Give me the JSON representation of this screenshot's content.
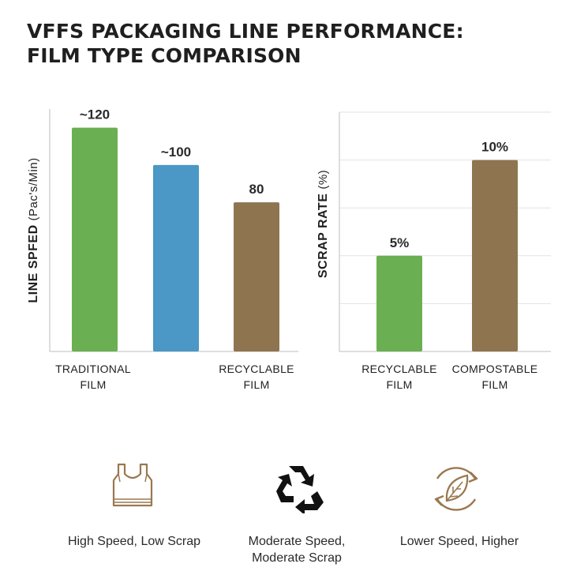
{
  "title": {
    "line1": "VFFS PACKAGING LINE PERFORMANCE:",
    "line2": "FILM TYPE COMPARISON"
  },
  "colors": {
    "green": "#6aaf52",
    "blue": "#4b97c5",
    "brown": "#8f7450",
    "axis": "#c9c9c9",
    "grid": "#e2e2e2"
  },
  "chart_data": [
    {
      "type": "bar",
      "ylabel": "LINE SPFED",
      "ylabel_units": "(Pac's/Min)",
      "categories": [
        "TRADITIONAL FILM",
        "",
        "RECYCLABLE FILM"
      ],
      "category_lines": [
        [
          "TRADITIONAL",
          "FILM"
        ],
        [
          "",
          ""
        ],
        [
          "RECYCLABLE",
          "FILM"
        ]
      ],
      "values": [
        120,
        100,
        80
      ],
      "data_labels": [
        "~120",
        "~100",
        "80"
      ],
      "colors": [
        "#6aaf52",
        "#4b97c5",
        "#8f7450"
      ],
      "ylim": [
        0,
        130
      ],
      "grid": false
    },
    {
      "type": "bar",
      "ylabel": "SCRAP RATE",
      "ylabel_units": "(%)",
      "categories": [
        "RECYCLABLE FILM",
        "COMPOSTABLE FILM"
      ],
      "category_lines": [
        [
          "RECYCLABLE",
          "FILM"
        ],
        [
          "COMPOSTABLE",
          "FILM"
        ]
      ],
      "values": [
        5,
        10
      ],
      "data_labels": [
        "5%",
        "10%"
      ],
      "colors": [
        "#6aaf52",
        "#8f7450"
      ],
      "ylim": [
        0,
        12.5
      ],
      "yticks": [
        0,
        2.5,
        5,
        7.5,
        10,
        12.5
      ],
      "grid": true
    }
  ],
  "icons": [
    {
      "name": "shopping-bag-icon",
      "label_lines": [
        "High Speed, Low Scrap"
      ]
    },
    {
      "name": "recycle-icon",
      "label_lines": [
        "Moderate Speed,",
        "Moderate Scrap"
      ]
    },
    {
      "name": "compost-leaf-icon",
      "label_lines": [
        "Lower Speed, Higher"
      ]
    }
  ]
}
